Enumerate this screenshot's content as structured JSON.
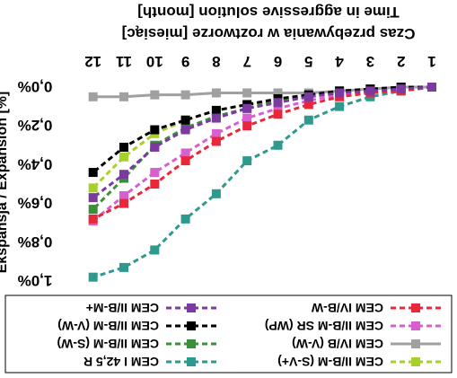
{
  "chart_data": {
    "type": "line",
    "title": "Czas przebywania w roztworze [miesiąc]",
    "subtitle": "Time in aggressive solution [month]",
    "xlabel": "Czas przebywania w roztworze [miesiąc] / Time in aggressive solution [month]",
    "ylabel": "Ekspansja / Expansion [%]",
    "x": [
      "1",
      "2",
      "3",
      "4",
      "5",
      "6",
      "7",
      "8",
      "9",
      "10",
      "11",
      "12"
    ],
    "ytick_labels": [
      "0,0%",
      "0,2%",
      "0,4%",
      "0,6%",
      "0,8%",
      "1,0%"
    ],
    "ylim": [
      0,
      1.0
    ],
    "y_inverted": true,
    "grid": false,
    "legend_position": "bottom",
    "series": [
      {
        "name": "CEM II/B-M (S-V+)",
        "color": "#a6d02a",
        "line": "dashed",
        "marker": "square",
        "values": [
          0.0,
          0.01,
          0.01,
          0.02,
          0.05,
          0.07,
          0.09,
          0.12,
          0.17,
          0.24,
          0.36,
          0.52
        ]
      },
      {
        "name": "CEM I 42,5 R",
        "color": "#2e9a8e",
        "line": "dashed",
        "marker": "square",
        "values": [
          0.0,
          0.02,
          0.05,
          0.1,
          0.17,
          0.3,
          0.38,
          0.55,
          0.68,
          0.84,
          0.93,
          0.98
        ]
      },
      {
        "name": "CEM IV/B (V-W)",
        "color": "#a0a0a0",
        "line": "solid",
        "marker": "square",
        "values": [
          0.0,
          0.0,
          0.01,
          0.02,
          0.03,
          0.03,
          0.03,
          0.03,
          0.04,
          0.04,
          0.05,
          0.05
        ]
      },
      {
        "name": "CEM II/B-M (S-W)",
        "color": "#3a8f3a",
        "line": "dashed",
        "marker": "square",
        "values": [
          0.0,
          0.01,
          0.01,
          0.03,
          0.05,
          0.07,
          0.11,
          0.15,
          0.21,
          0.3,
          0.47,
          0.63
        ]
      },
      {
        "name": "CEM II/B-M SR (WP)",
        "color": "#d85fd0",
        "line": "dashed",
        "marker": "square",
        "values": [
          0.0,
          0.01,
          0.02,
          0.04,
          0.07,
          0.11,
          0.16,
          0.24,
          0.34,
          0.44,
          0.56,
          0.69
        ]
      },
      {
        "name": "CEM II/B-M (V-W)",
        "color": "#000000",
        "line": "dashed",
        "marker": "square",
        "values": [
          0.0,
          0.0,
          0.01,
          0.02,
          0.04,
          0.06,
          0.09,
          0.12,
          0.17,
          0.22,
          0.31,
          0.44
        ]
      },
      {
        "name": "CEM IV/B-W",
        "color": "#e8283a",
        "line": "dashed",
        "marker": "square",
        "values": [
          0.0,
          0.02,
          0.03,
          0.05,
          0.09,
          0.14,
          0.2,
          0.28,
          0.38,
          0.5,
          0.6,
          0.68
        ]
      },
      {
        "name": "CEM II/B-M+",
        "color": "#7a3aa0",
        "line": "dashed",
        "marker": "square",
        "values": [
          0.0,
          0.01,
          0.02,
          0.03,
          0.05,
          0.08,
          0.11,
          0.16,
          0.22,
          0.31,
          0.45,
          0.57
        ]
      }
    ],
    "legend_layout": [
      [
        0,
        1
      ],
      [
        2,
        3
      ],
      [
        4,
        5
      ],
      [
        6,
        7
      ]
    ]
  }
}
